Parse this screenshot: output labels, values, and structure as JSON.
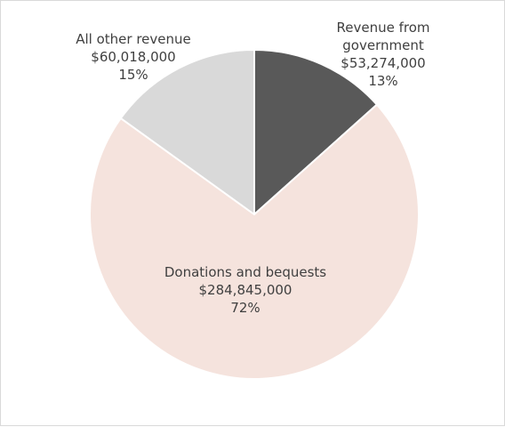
{
  "chart_data": {
    "type": "pie",
    "slices": [
      {
        "name_lines": [
          "Revenue from",
          "government"
        ],
        "amount": "$53,274,000",
        "pct_label": "13%",
        "value": 53274000,
        "color": "#595959"
      },
      {
        "name_lines": [
          "Donations and bequests"
        ],
        "amount": "$284,845,000",
        "pct_label": "72%",
        "value": 284845000,
        "color": "#f5e3dd"
      },
      {
        "name_lines": [
          "All other revenue"
        ],
        "amount": "$60,018,000",
        "pct_label": "15%",
        "value": 60018000,
        "color": "#d9d9d9"
      }
    ],
    "legend": "none"
  }
}
